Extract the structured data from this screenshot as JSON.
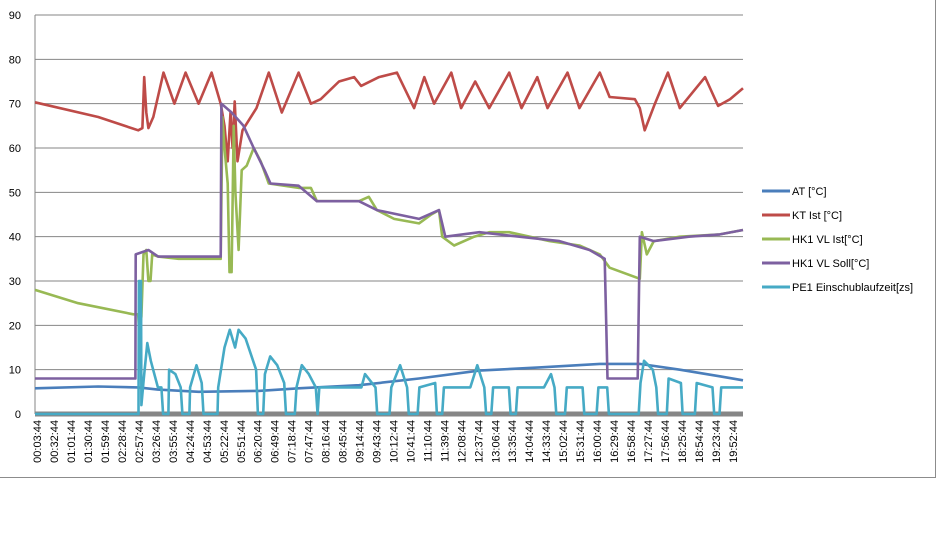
{
  "chart_data": {
    "type": "line",
    "title": "",
    "xlabel": "",
    "ylabel": "",
    "ylim": [
      0,
      90
    ],
    "yticks": [
      0,
      10,
      20,
      30,
      40,
      50,
      60,
      70,
      80,
      90
    ],
    "xlim_hours": [
      0,
      20.17
    ],
    "grid": "horizontal",
    "legend_position": "right",
    "xtick_labels": [
      "00:03:44",
      "00:32:44",
      "01:01:44",
      "01:30:44",
      "01:59:44",
      "02:28:44",
      "02:57:44",
      "03:26:44",
      "03:55:44",
      "04:24:44",
      "04:53:44",
      "05:22:44",
      "05:51:44",
      "06:20:44",
      "06:49:44",
      "07:18:44",
      "07:47:44",
      "08:16:44",
      "08:45:44",
      "09:14:44",
      "09:43:44",
      "10:12:44",
      "10:41:44",
      "11:10:44",
      "11:39:44",
      "12:08:44",
      "12:37:44",
      "13:06:44",
      "13:35:44",
      "14:04:44",
      "14:33:44",
      "15:02:44",
      "15:31:44",
      "16:00:44",
      "16:29:44",
      "16:58:44",
      "17:27:44",
      "17:56:44",
      "18:25:44",
      "18:54:44",
      "19:23:44",
      "19:52:44"
    ],
    "x_unit": "hours since 00:00:00",
    "series": [
      {
        "name": "AT [°C]",
        "color": "#4a7ebb",
        "points": [
          [
            0,
            5.8
          ],
          [
            1.8,
            6.2
          ],
          [
            2.94,
            6
          ],
          [
            3.5,
            5.5
          ],
          [
            4.66,
            5
          ],
          [
            6.37,
            5.2
          ],
          [
            7.51,
            5.8
          ],
          [
            9.23,
            6.5
          ],
          [
            10.94,
            8
          ],
          [
            12.66,
            9.8
          ],
          [
            14.37,
            10.5
          ],
          [
            16.09,
            11.3
          ],
          [
            17.23,
            11.3
          ],
          [
            18.37,
            10
          ],
          [
            19.51,
            8.5
          ],
          [
            20.17,
            7.6
          ]
        ]
      },
      {
        "name": "KT Ist [°C]",
        "color": "#be4b48",
        "points": [
          [
            0,
            70.3
          ],
          [
            1.8,
            67
          ],
          [
            2.94,
            64
          ],
          [
            3.06,
            64.5
          ],
          [
            3.11,
            76
          ],
          [
            3.17,
            68
          ],
          [
            3.23,
            64.5
          ],
          [
            3.37,
            67
          ],
          [
            3.66,
            77
          ],
          [
            3.97,
            70
          ],
          [
            4.29,
            77
          ],
          [
            4.66,
            70
          ],
          [
            5.03,
            77
          ],
          [
            5.29,
            70
          ],
          [
            5.4,
            65
          ],
          [
            5.49,
            57
          ],
          [
            5.57,
            68
          ],
          [
            5.63,
            60
          ],
          [
            5.69,
            70.5
          ],
          [
            5.77,
            57
          ],
          [
            5.91,
            64
          ],
          [
            6.31,
            69
          ],
          [
            6.66,
            77
          ],
          [
            7.03,
            68
          ],
          [
            7.51,
            77
          ],
          [
            7.86,
            70
          ],
          [
            8.14,
            71
          ],
          [
            8.66,
            75
          ],
          [
            9.09,
            76
          ],
          [
            9.29,
            74
          ],
          [
            9.8,
            76
          ],
          [
            10.31,
            77
          ],
          [
            10.8,
            69
          ],
          [
            11.09,
            76
          ],
          [
            11.37,
            70
          ],
          [
            11.86,
            77
          ],
          [
            12.14,
            69
          ],
          [
            12.54,
            75
          ],
          [
            12.94,
            69
          ],
          [
            13.51,
            77
          ],
          [
            13.86,
            69
          ],
          [
            14.31,
            76
          ],
          [
            14.6,
            69
          ],
          [
            15.17,
            77
          ],
          [
            15.51,
            69
          ],
          [
            16.09,
            77
          ],
          [
            16.37,
            71.5
          ],
          [
            17.09,
            71
          ],
          [
            17.23,
            69
          ],
          [
            17.37,
            64
          ],
          [
            17.66,
            70
          ],
          [
            18.03,
            77
          ],
          [
            18.37,
            69
          ],
          [
            19.09,
            76
          ],
          [
            19.46,
            69.5
          ],
          [
            19.8,
            71
          ],
          [
            20.17,
            73.5
          ]
        ]
      },
      {
        "name": "HK1 VL Ist[°C]",
        "color": "#98b954",
        "points": [
          [
            0,
            28
          ],
          [
            1.23,
            25
          ],
          [
            2.8,
            22.5
          ],
          [
            2.94,
            22.5
          ],
          [
            2.97,
            18
          ],
          [
            3.03,
            22
          ],
          [
            3.09,
            36
          ],
          [
            3.17,
            37
          ],
          [
            3.23,
            30
          ],
          [
            3.29,
            30
          ],
          [
            3.34,
            36
          ],
          [
            3.51,
            35.5
          ],
          [
            4.09,
            35
          ],
          [
            5.29,
            35
          ],
          [
            5.34,
            67
          ],
          [
            5.4,
            60
          ],
          [
            5.49,
            52
          ],
          [
            5.54,
            32
          ],
          [
            5.6,
            32
          ],
          [
            5.66,
            65
          ],
          [
            5.71,
            50
          ],
          [
            5.8,
            37
          ],
          [
            5.89,
            55
          ],
          [
            6.03,
            56
          ],
          [
            6.23,
            60
          ],
          [
            6.43,
            57
          ],
          [
            6.66,
            52
          ],
          [
            7.51,
            51
          ],
          [
            7.86,
            51
          ],
          [
            8.03,
            48
          ],
          [
            9.23,
            48
          ],
          [
            9.51,
            49
          ],
          [
            9.74,
            46
          ],
          [
            10.23,
            44
          ],
          [
            10.94,
            43
          ],
          [
            11.29,
            45
          ],
          [
            11.51,
            46
          ],
          [
            11.6,
            40
          ],
          [
            11.94,
            38
          ],
          [
            12.51,
            40
          ],
          [
            12.94,
            41
          ],
          [
            13.51,
            41
          ],
          [
            14.09,
            40
          ],
          [
            14.66,
            39
          ],
          [
            15.51,
            38
          ],
          [
            16.09,
            36
          ],
          [
            16.37,
            33
          ],
          [
            17.23,
            30.5
          ],
          [
            17.29,
            41
          ],
          [
            17.43,
            36
          ],
          [
            17.63,
            39
          ],
          [
            18.37,
            40
          ],
          [
            19.51,
            40.5
          ],
          [
            20.17,
            41.5
          ]
        ]
      },
      {
        "name": "HK1 VL Soll[°C]",
        "color": "#7d60a0",
        "points": [
          [
            0,
            8
          ],
          [
            2.86,
            8
          ],
          [
            2.87,
            36
          ],
          [
            3.23,
            37
          ],
          [
            3.51,
            35.5
          ],
          [
            5.29,
            35.5
          ],
          [
            5.31,
            70
          ],
          [
            5.6,
            68
          ],
          [
            5.94,
            65
          ],
          [
            6.23,
            60
          ],
          [
            6.54,
            55
          ],
          [
            6.71,
            52
          ],
          [
            7.51,
            51.5
          ],
          [
            8.03,
            48
          ],
          [
            9.23,
            48
          ],
          [
            9.74,
            46
          ],
          [
            10.94,
            44
          ],
          [
            11.51,
            46
          ],
          [
            11.69,
            40
          ],
          [
            12.66,
            41
          ],
          [
            13.8,
            40
          ],
          [
            14.94,
            39
          ],
          [
            15.8,
            37
          ],
          [
            16.23,
            35
          ],
          [
            16.31,
            8
          ],
          [
            17.17,
            8
          ],
          [
            17.23,
            40
          ],
          [
            17.63,
            39
          ],
          [
            18.63,
            40
          ],
          [
            19.51,
            40.5
          ],
          [
            20.17,
            41.5
          ]
        ]
      },
      {
        "name": "PE1 Einschublaufzeit[zs]",
        "color": "#46aac5",
        "points": [
          [
            0,
            0
          ],
          [
            2.95,
            0
          ],
          [
            2.96,
            30
          ],
          [
            3.02,
            30
          ],
          [
            3.03,
            2
          ],
          [
            3.1,
            8
          ],
          [
            3.2,
            16
          ],
          [
            3.3,
            12
          ],
          [
            3.5,
            6
          ],
          [
            3.6,
            6
          ],
          [
            3.65,
            0
          ],
          [
            3.8,
            0
          ],
          [
            3.82,
            10
          ],
          [
            4.0,
            9
          ],
          [
            4.15,
            6
          ],
          [
            4.2,
            0
          ],
          [
            4.4,
            0
          ],
          [
            4.42,
            6
          ],
          [
            4.6,
            11
          ],
          [
            4.75,
            7
          ],
          [
            4.8,
            0
          ],
          [
            5.2,
            0
          ],
          [
            5.22,
            6
          ],
          [
            5.4,
            15
          ],
          [
            5.55,
            19
          ],
          [
            5.7,
            15
          ],
          [
            5.8,
            19
          ],
          [
            6.0,
            17
          ],
          [
            6.3,
            10
          ],
          [
            6.35,
            0
          ],
          [
            6.5,
            0
          ],
          [
            6.55,
            9
          ],
          [
            6.7,
            13
          ],
          [
            6.9,
            11
          ],
          [
            7.1,
            7
          ],
          [
            7.15,
            0
          ],
          [
            7.4,
            0
          ],
          [
            7.45,
            6
          ],
          [
            7.6,
            11
          ],
          [
            7.8,
            9
          ],
          [
            8.0,
            6
          ],
          [
            8.05,
            0
          ],
          [
            8.1,
            6
          ],
          [
            9.3,
            6
          ],
          [
            9.4,
            9
          ],
          [
            9.7,
            6
          ],
          [
            9.75,
            0
          ],
          [
            10.1,
            0
          ],
          [
            10.15,
            6
          ],
          [
            10.4,
            11
          ],
          [
            10.6,
            6
          ],
          [
            10.65,
            0
          ],
          [
            10.9,
            0
          ],
          [
            10.95,
            6
          ],
          [
            11.4,
            7
          ],
          [
            11.45,
            0
          ],
          [
            11.6,
            0
          ],
          [
            11.65,
            6
          ],
          [
            12.4,
            6
          ],
          [
            12.6,
            11
          ],
          [
            12.8,
            6
          ],
          [
            12.85,
            0
          ],
          [
            13.0,
            0
          ],
          [
            13.05,
            6
          ],
          [
            13.5,
            6
          ],
          [
            13.55,
            0
          ],
          [
            13.7,
            0
          ],
          [
            13.75,
            6
          ],
          [
            14.5,
            6
          ],
          [
            14.7,
            9
          ],
          [
            14.8,
            6
          ],
          [
            14.85,
            0
          ],
          [
            15.1,
            0
          ],
          [
            15.15,
            6
          ],
          [
            15.6,
            6
          ],
          [
            15.65,
            0
          ],
          [
            16.0,
            0
          ],
          [
            16.05,
            6
          ],
          [
            16.3,
            6
          ],
          [
            16.35,
            0
          ],
          [
            17.2,
            0
          ],
          [
            17.25,
            7
          ],
          [
            17.35,
            12
          ],
          [
            17.6,
            10
          ],
          [
            17.7,
            6
          ],
          [
            17.75,
            0
          ],
          [
            18.0,
            0
          ],
          [
            18.05,
            8
          ],
          [
            18.4,
            7
          ],
          [
            18.45,
            0
          ],
          [
            18.8,
            0
          ],
          [
            18.85,
            7
          ],
          [
            19.3,
            6
          ],
          [
            19.35,
            0
          ],
          [
            19.5,
            0
          ],
          [
            19.55,
            6
          ],
          [
            20.17,
            6
          ]
        ]
      }
    ]
  }
}
